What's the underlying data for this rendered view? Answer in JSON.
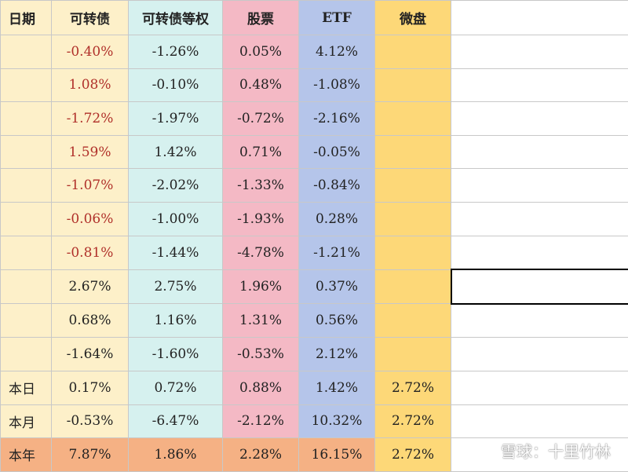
{
  "table": {
    "header": [
      "日期",
      "可转债",
      "可转债等权",
      "股票",
      "ETF",
      "微盘"
    ],
    "rows": [
      [
        null,
        "-0.40%",
        "-1.26%",
        "0.05%",
        "4.12%",
        null
      ],
      [
        null,
        "1.08%",
        "-0.10%",
        "0.48%",
        "-1.08%",
        null
      ],
      [
        null,
        "-1.72%",
        "-1.97%",
        "-0.72%",
        "-2.16%",
        null
      ],
      [
        null,
        "1.59%",
        "1.42%",
        "0.71%",
        "-0.05%",
        null
      ],
      [
        null,
        "-1.07%",
        "-2.02%",
        "-1.33%",
        "-0.84%",
        null
      ],
      [
        null,
        "-0.06%",
        "-1.00%",
        "-1.93%",
        "0.28%",
        null
      ],
      [
        null,
        "-0.81%",
        "-1.44%",
        "-4.78%",
        "-1.21%",
        null
      ],
      [
        null,
        "2.67%",
        "2.75%",
        "1.96%",
        "0.37%",
        null
      ],
      [
        null,
        "0.68%",
        "1.16%",
        "1.31%",
        "0.56%",
        null
      ],
      [
        null,
        "-1.64%",
        "-1.60%",
        "-0.53%",
        "2.12%",
        null
      ],
      [
        "本日",
        "0.17%",
        "0.72%",
        "0.88%",
        "1.42%",
        "2.72%"
      ],
      [
        "本月",
        "-0.53%",
        "-6.47%",
        "-2.12%",
        "10.32%",
        "2.72%"
      ],
      [
        "本年",
        "7.87%",
        "1.86%",
        "2.28%",
        "16.15%",
        "2.72%"
      ]
    ]
  },
  "watermark": "雪球：十里竹林"
}
